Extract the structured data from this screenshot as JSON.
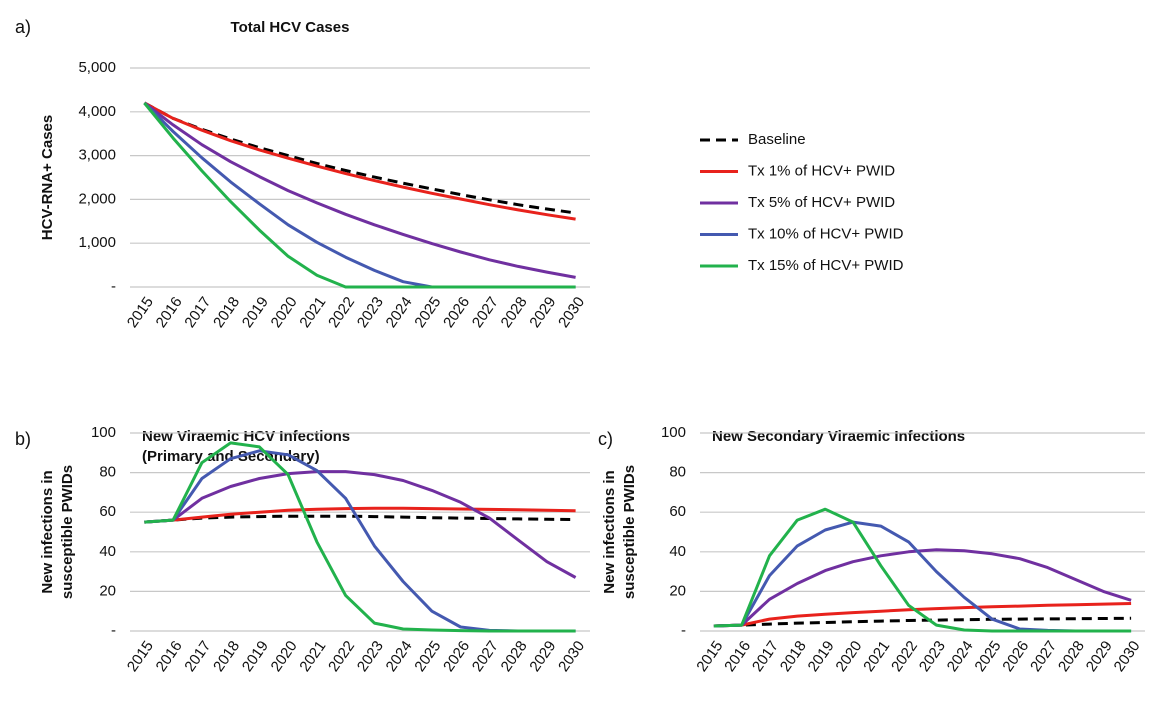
{
  "chart_data": [
    {
      "type": "line",
      "label": "a)",
      "title": "Total HCV Cases",
      "ylabel": "HCV-RNA+ Cases",
      "categories": [
        "2015",
        "2016",
        "2017",
        "2018",
        "2019",
        "2020",
        "2021",
        "2022",
        "2023",
        "2024",
        "2025",
        "2026",
        "2027",
        "2028",
        "2029",
        "2030"
      ],
      "ylim": [
        0,
        5000
      ],
      "yticks": [
        {
          "value": 0,
          "label": "-"
        },
        {
          "value": 1000,
          "label": "1,000"
        },
        {
          "value": 2000,
          "label": "2,000"
        },
        {
          "value": 3000,
          "label": "3,000"
        },
        {
          "value": 4000,
          "label": "4,000"
        },
        {
          "value": 5000,
          "label": "5,000"
        }
      ],
      "grid": true,
      "legend": "right",
      "series": [
        {
          "name": "Baseline",
          "color": "#000000",
          "dashed": true,
          "values": [
            4200,
            3850,
            3600,
            3380,
            3180,
            3000,
            2820,
            2660,
            2510,
            2370,
            2240,
            2110,
            1990,
            1880,
            1780,
            1690
          ]
        },
        {
          "name": "Tx 1% of HCV+ PWID",
          "color": "#e8221c",
          "values": [
            4200,
            3850,
            3580,
            3340,
            3130,
            2940,
            2760,
            2590,
            2430,
            2280,
            2140,
            2010,
            1880,
            1760,
            1650,
            1550
          ]
        },
        {
          "name": "Tx 5% of HCV+ PWID",
          "color": "#7030a0",
          "values": [
            4200,
            3700,
            3250,
            2860,
            2520,
            2200,
            1920,
            1660,
            1420,
            1200,
            990,
            800,
            620,
            470,
            340,
            220
          ]
        },
        {
          "name": "Tx 10% of HCV+ PWID",
          "color": "#4459b0",
          "values": [
            4200,
            3550,
            2950,
            2400,
            1900,
            1420,
            1020,
            680,
            380,
            120,
            0,
            0,
            0,
            0,
            0,
            0
          ]
        },
        {
          "name": "Tx 15% of HCV+ PWID",
          "color": "#22b24c",
          "values": [
            4200,
            3400,
            2650,
            1950,
            1300,
            700,
            270,
            0,
            0,
            0,
            0,
            0,
            0,
            0,
            0,
            0
          ]
        }
      ]
    },
    {
      "type": "line",
      "label": "b)",
      "title": [
        "New Viraemic HCV Infections",
        "(Primary and Secondary)"
      ],
      "ylabel": [
        "New infections in",
        "susceptible PWIDs"
      ],
      "categories": [
        "2015",
        "2016",
        "2017",
        "2018",
        "2019",
        "2020",
        "2021",
        "2022",
        "2023",
        "2024",
        "2025",
        "2026",
        "2027",
        "2028",
        "2029",
        "2030"
      ],
      "ylim": [
        0,
        100
      ],
      "yticks": [
        {
          "value": 0,
          "label": "-"
        },
        20,
        40,
        60,
        80,
        100
      ],
      "grid": true,
      "series": [
        {
          "color": "#000000",
          "dashed": true,
          "values": [
            55,
            56,
            57,
            57.5,
            57.8,
            58,
            58,
            58,
            57.8,
            57.5,
            57.2,
            57,
            56.8,
            56.6,
            56.4,
            56.3
          ]
        },
        {
          "color": "#e8221c",
          "values": [
            55,
            56,
            57.5,
            59,
            60,
            61,
            61.5,
            61.8,
            62,
            62,
            61.8,
            61.6,
            61.4,
            61.2,
            61,
            60.7
          ]
        },
        {
          "color": "#7030a0",
          "values": [
            55,
            56,
            67,
            73,
            77,
            79.5,
            80.5,
            80.5,
            79,
            76,
            71,
            65,
            57,
            46,
            35,
            27
          ]
        },
        {
          "color": "#4459b0",
          "values": [
            55,
            56,
            77,
            87,
            91,
            89,
            81,
            67,
            43,
            25,
            10,
            2,
            0.3,
            0,
            0,
            0
          ]
        },
        {
          "color": "#22b24c",
          "values": [
            55,
            56,
            85,
            95,
            93,
            79,
            45,
            18,
            4,
            1,
            0.5,
            0.2,
            0,
            0,
            0,
            0
          ]
        }
      ]
    },
    {
      "type": "line",
      "label": "c)",
      "title": "New Secondary Viraemic Infections",
      "ylabel": [
        "New infections in",
        "susceptible PWIDs"
      ],
      "categories": [
        "2015",
        "2016",
        "2017",
        "2018",
        "2019",
        "2020",
        "2021",
        "2022",
        "2023",
        "2024",
        "2025",
        "2026",
        "2027",
        "2028",
        "2029",
        "2030"
      ],
      "ylim": [
        0,
        100
      ],
      "yticks": [
        {
          "value": 0,
          "label": "-"
        },
        20,
        40,
        60,
        80,
        100
      ],
      "grid": true,
      "series": [
        {
          "color": "#000000",
          "dashed": true,
          "values": [
            2.5,
            3,
            3.5,
            4,
            4.3,
            4.7,
            5,
            5.3,
            5.5,
            5.7,
            5.9,
            6,
            6.1,
            6.2,
            6.3,
            6.4
          ]
        },
        {
          "color": "#e8221c",
          "values": [
            2.5,
            3,
            6,
            7.5,
            8.5,
            9.3,
            10,
            10.7,
            11.3,
            11.8,
            12.2,
            12.6,
            13,
            13.3,
            13.6,
            13.9
          ]
        },
        {
          "color": "#7030a0",
          "values": [
            2.5,
            3,
            16,
            24,
            30.5,
            35,
            38,
            40,
            41,
            40.5,
            39,
            36.5,
            32,
            26,
            20,
            15.5
          ]
        },
        {
          "color": "#4459b0",
          "values": [
            2.5,
            3,
            28,
            43,
            51,
            55,
            53,
            45,
            30,
            17,
            6,
            1,
            0.3,
            0,
            0,
            0
          ]
        },
        {
          "color": "#22b24c",
          "values": [
            2.5,
            3,
            38,
            56,
            61.5,
            55,
            33,
            13,
            3,
            0.5,
            0,
            0,
            0,
            0,
            0,
            0
          ]
        }
      ]
    }
  ]
}
